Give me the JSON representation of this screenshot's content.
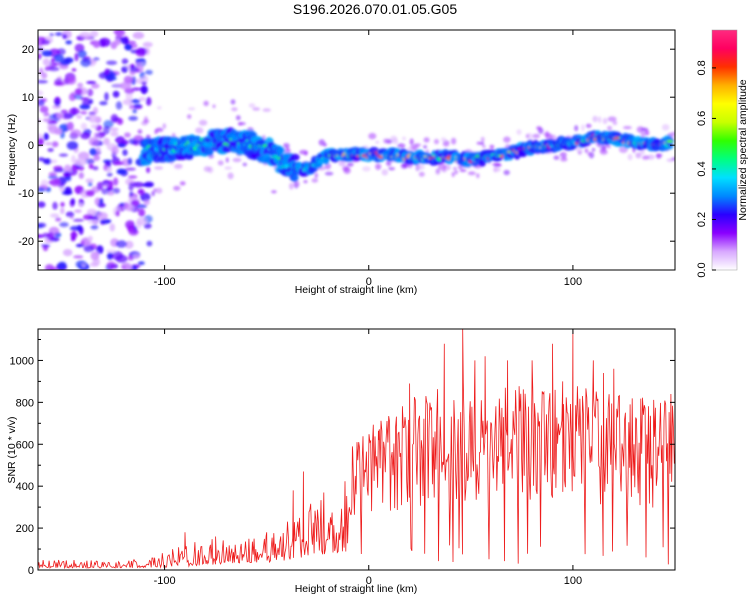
{
  "title": "S196.2026.070.01.05.G05",
  "chart_data": [
    {
      "id": "spectrogram",
      "type": "heatmap",
      "title": "S196.2026.070.01.05.G05",
      "xlabel": "Height of straight line (km)",
      "ylabel": "Frequency (Hz)",
      "xlim": [
        -162,
        150
      ],
      "ylim": [
        -26,
        24
      ],
      "xticks": [
        -100,
        0,
        100
      ],
      "xtick_labels": [
        "-100",
        "0",
        "100"
      ],
      "yticks": [
        -20,
        -10,
        0,
        10,
        20
      ],
      "ytick_labels": [
        "-20",
        "-10",
        "0",
        "10",
        "20"
      ],
      "colorbar": {
        "label": "Normalized spectral amplitude",
        "range": [
          0,
          0.95
        ],
        "ticks": [
          0,
          0.2,
          0.4,
          0.6,
          0.8
        ],
        "tick_labels": [
          "0.0",
          "0.2",
          "0.4",
          "0.6",
          "0.8"
        ],
        "colors": [
          "#ffffff",
          "#d8a8ff",
          "#8a00ff",
          "#2a00ff",
          "#0088ff",
          "#00e0ff",
          "#00ff80",
          "#30ff00",
          "#c8ff00",
          "#ffff00",
          "#ffb000",
          "#ff3000",
          "#ff0060",
          "#ff2a80"
        ]
      },
      "ridge": {
        "x": [
          -110,
          -100,
          -90,
          -80,
          -70,
          -60,
          -50,
          -40,
          -30,
          -20,
          -10,
          0,
          10,
          20,
          30,
          40,
          50,
          60,
          70,
          80,
          90,
          100,
          110,
          120,
          130,
          140,
          148
        ],
        "frequency": [
          -1.5,
          -1.0,
          -0.5,
          0.5,
          1.0,
          0.5,
          -1.0,
          -4.5,
          -5.0,
          -2.0,
          -2.0,
          -2.0,
          -2.0,
          -2.5,
          -2.5,
          -2.5,
          -3.0,
          -2.5,
          -1.5,
          -0.5,
          0.0,
          0.5,
          1.5,
          1.5,
          0.5,
          0.0,
          0.5
        ]
      }
    },
    {
      "id": "snr",
      "type": "line",
      "xlabel": "Height of straight line (km)",
      "ylabel": "SNR (10 * v/v)",
      "xlim": [
        -162,
        150
      ],
      "ylim": [
        0,
        1150
      ],
      "xticks": [
        -100,
        0,
        100
      ],
      "xtick_labels": [
        "-100",
        "0",
        "100"
      ],
      "yticks": [
        0,
        200,
        400,
        600,
        800,
        1000
      ],
      "ytick_labels": [
        "0",
        "200",
        "400",
        "600",
        "800",
        "1000"
      ],
      "color": "#ee1c1c",
      "envelope": {
        "x": [
          -162,
          -120,
          -105,
          -95,
          -85,
          -70,
          -55,
          -45,
          -38,
          -32,
          -26,
          -18,
          -10,
          -6,
          0,
          10,
          20,
          30,
          40,
          50,
          60,
          70,
          80,
          90,
          100,
          110,
          120,
          130,
          140,
          150
        ],
        "low": [
          10,
          10,
          12,
          15,
          20,
          30,
          35,
          40,
          50,
          60,
          70,
          80,
          90,
          300,
          280,
          260,
          280,
          300,
          310,
          300,
          310,
          300,
          300,
          320,
          320,
          320,
          300,
          300,
          280,
          400
        ],
        "high": [
          50,
          45,
          60,
          120,
          150,
          160,
          170,
          180,
          250,
          300,
          380,
          430,
          520,
          690,
          720,
          760,
          820,
          860,
          900,
          900,
          880,
          900,
          880,
          880,
          880,
          870,
          860,
          830,
          820,
          800
        ]
      },
      "peaks": {
        "x": [
          -90,
          -75,
          -50,
          -37,
          -32,
          -22,
          -8,
          5,
          20,
          28,
          37,
          46,
          52,
          57,
          68,
          80,
          90,
          95,
          100,
          110,
          115,
          120,
          128,
          138,
          148
        ],
        "y": [
          180,
          160,
          180,
          380,
          470,
          370,
          590,
          620,
          890,
          830,
          1080,
          1150,
          1000,
          1020,
          1000,
          1000,
          1080,
          900,
          1140,
          1000,
          940,
          960,
          790,
          730,
          840
        ]
      }
    }
  ]
}
